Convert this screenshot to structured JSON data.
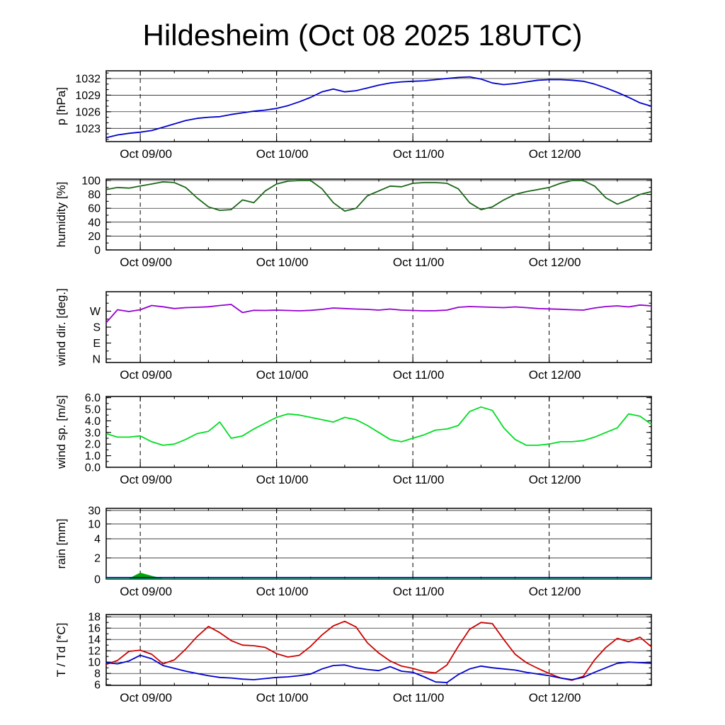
{
  "title": "Hildesheim (Oct 08 2025 18UTC)",
  "chart_data": {
    "type": "line",
    "x_axis": {
      "range_hours": [
        0,
        96
      ],
      "start_time": "Oct 08 18:00 UTC",
      "minor_step_hours": 6,
      "major_ticks": [
        {
          "hour": 6,
          "label": "Oct 09/00"
        },
        {
          "hour": 30,
          "label": "Oct 10/00"
        },
        {
          "hour": 54,
          "label": "Oct 11/00"
        },
        {
          "hour": 78,
          "label": "Oct 12/00"
        }
      ]
    },
    "sample_hours": [
      0,
      2,
      4,
      6,
      8,
      10,
      12,
      14,
      16,
      18,
      20,
      22,
      24,
      26,
      28,
      30,
      32,
      34,
      36,
      38,
      40,
      42,
      44,
      46,
      48,
      50,
      52,
      54,
      56,
      58,
      60,
      62,
      64,
      66,
      68,
      70,
      72,
      74,
      76,
      78,
      80,
      82,
      84,
      86,
      88,
      90,
      92,
      94,
      96
    ],
    "panels": [
      {
        "id": "pressure",
        "ylabel": "p [hPa]",
        "ylim": [
          1020.6,
          1033.4
        ],
        "minor_step": 1,
        "grid": true,
        "yticks": [
          {
            "v": 1023,
            "label": "1023"
          },
          {
            "v": 1026,
            "label": "1026"
          },
          {
            "v": 1029,
            "label": "1029"
          },
          {
            "v": 1032,
            "label": "1032"
          }
        ],
        "series": [
          {
            "name": "pressure",
            "color": "#0000cd",
            "values": [
              1021.3,
              1021.8,
              1022.1,
              1022.3,
              1022.6,
              1023.2,
              1023.8,
              1024.4,
              1024.8,
              1025.0,
              1025.1,
              1025.5,
              1025.8,
              1026.1,
              1026.3,
              1026.6,
              1027.1,
              1027.8,
              1028.6,
              1029.6,
              1030.1,
              1029.6,
              1029.8,
              1030.3,
              1030.8,
              1031.2,
              1031.4,
              1031.5,
              1031.6,
              1031.8,
              1032.0,
              1032.2,
              1032.3,
              1031.9,
              1031.2,
              1030.9,
              1031.1,
              1031.4,
              1031.7,
              1031.8,
              1031.8,
              1031.7,
              1031.5,
              1031.0,
              1030.3,
              1029.5,
              1028.6,
              1027.6,
              1027.0
            ]
          }
        ]
      },
      {
        "id": "humidity",
        "ylabel": "humidity [%]",
        "ylim": [
          0,
          102
        ],
        "minor_step": 10,
        "grid": true,
        "yticks": [
          {
            "v": 0,
            "label": "0"
          },
          {
            "v": 20,
            "label": "20"
          },
          {
            "v": 40,
            "label": "40"
          },
          {
            "v": 60,
            "label": "60"
          },
          {
            "v": 80,
            "label": "80"
          },
          {
            "v": 100,
            "label": "100"
          }
        ],
        "series": [
          {
            "name": "humidity",
            "color": "#1a6618",
            "values": [
              87,
              90,
              89,
              92,
              95,
              98,
              97,
              90,
              75,
              62,
              57,
              58,
              72,
              68,
              85,
              95,
              99,
              100,
              100,
              88,
              68,
              56,
              60,
              78,
              85,
              92,
              91,
              96,
              97,
              97,
              96,
              88,
              68,
              58,
              62,
              72,
              80,
              84,
              87,
              90,
              96,
              100,
              100,
              92,
              75,
              66,
              72,
              80,
              84
            ]
          }
        ]
      },
      {
        "id": "wind-direction",
        "ylabel": "wind dir. [deg.]",
        "ylim": [
          -20,
          380
        ],
        "minor_step": 45,
        "grid": false,
        "yticks": [
          {
            "v": 0,
            "label": "N"
          },
          {
            "v": 90,
            "label": "E"
          },
          {
            "v": 180,
            "label": "S"
          },
          {
            "v": 270,
            "label": "W"
          }
        ],
        "series": [
          {
            "name": "wind-direction",
            "color": "#9400d3",
            "values": [
              205,
              278,
              268,
              278,
              302,
              295,
              285,
              290,
              292,
              295,
              302,
              308,
              262,
              275,
              274,
              276,
              274,
              272,
              275,
              280,
              288,
              285,
              282,
              280,
              276,
              282,
              276,
              274,
              272,
              273,
              276,
              292,
              296,
              294,
              292,
              290,
              294,
              290,
              285,
              283,
              281,
              278,
              276,
              288,
              296,
              300,
              294,
              305,
              300
            ]
          }
        ]
      },
      {
        "id": "wind-speed",
        "ylabel": "wind sp. [m/s]",
        "ylim": [
          0,
          6.1
        ],
        "minor_step": 0.5,
        "grid": false,
        "yticks": [
          {
            "v": 0,
            "label": "0.0"
          },
          {
            "v": 1,
            "label": "1.0"
          },
          {
            "v": 2,
            "label": "2.0"
          },
          {
            "v": 3,
            "label": "3.0"
          },
          {
            "v": 4,
            "label": "4.0"
          },
          {
            "v": 5,
            "label": "5.0"
          },
          {
            "v": 6,
            "label": "6.0"
          }
        ],
        "series": [
          {
            "name": "wind-speed",
            "color": "#00dd22",
            "values": [
              2.9,
              2.6,
              2.6,
              2.7,
              2.2,
              1.9,
              2.0,
              2.4,
              2.9,
              3.1,
              3.9,
              2.5,
              2.7,
              3.3,
              3.8,
              4.3,
              4.6,
              4.5,
              4.3,
              4.1,
              3.9,
              4.3,
              4.1,
              3.6,
              3.0,
              2.4,
              2.2,
              2.5,
              2.8,
              3.2,
              3.3,
              3.6,
              4.8,
              5.2,
              4.9,
              3.4,
              2.4,
              1.9,
              1.9,
              2.0,
              2.2,
              2.2,
              2.3,
              2.6,
              3.0,
              3.4,
              4.6,
              4.4,
              3.7
            ]
          }
        ]
      },
      {
        "id": "rain",
        "ylabel": "rain [mm]",
        "scale": "piecewise",
        "grid": true,
        "yticks": [
          {
            "v": 0,
            "label": "0",
            "f": 0
          },
          {
            "v": 2,
            "label": "2",
            "f": 0.3
          },
          {
            "v": 4,
            "label": "4",
            "f": 0.57
          },
          {
            "v": 10,
            "label": "10",
            "f": 0.78
          },
          {
            "v": 30,
            "label": "30",
            "f": 0.97
          }
        ],
        "series": [
          {
            "name": "rain-bar",
            "color": "#00aa00",
            "fill": true,
            "values": [
              0,
              0,
              0,
              0.55,
              0.25,
              0,
              0,
              0,
              0,
              0,
              0,
              0,
              0,
              0,
              0,
              0,
              0,
              0,
              0,
              0,
              0,
              0,
              0,
              0,
              0,
              0,
              0,
              0,
              0,
              0,
              0,
              0,
              0,
              0,
              0,
              0,
              0,
              0,
              0,
              0,
              0,
              0,
              0,
              0,
              0,
              0,
              0,
              0,
              0
            ]
          },
          {
            "name": "rain-line",
            "color": "#0000cd",
            "values": [
              0.15,
              0.15,
              0.15,
              0.15,
              0.15,
              0.15,
              0.15,
              0.15,
              0.15,
              0.15,
              0.15,
              0.15,
              0.15,
              0.15,
              0.15,
              0.15,
              0.15,
              0.15,
              0.15,
              0.15,
              0.15,
              0.15,
              0.15,
              0.15,
              0.15,
              0.15,
              0.15,
              0.15,
              0.15,
              0.15,
              0.15,
              0.15,
              0.15,
              0.15,
              0.15,
              0.15,
              0.15,
              0.15,
              0.15,
              0.15,
              0.15,
              0.15,
              0.15,
              0.15,
              0.15,
              0.15,
              0.15,
              0.15,
              0.15
            ]
          }
        ]
      },
      {
        "id": "temperature",
        "ylabel": "T / Td [*C]",
        "ylim": [
          5.9,
          18.4
        ],
        "minor_step": 1,
        "grid": true,
        "yticks": [
          {
            "v": 6,
            "label": "6"
          },
          {
            "v": 8,
            "label": "8"
          },
          {
            "v": 10,
            "label": "10"
          },
          {
            "v": 12,
            "label": "12"
          },
          {
            "v": 14,
            "label": "14"
          },
          {
            "v": 16,
            "label": "16"
          },
          {
            "v": 18,
            "label": "18"
          }
        ],
        "series": [
          {
            "name": "temperature",
            "color": "#cc0000",
            "values": [
              9.6,
              10.3,
              11.9,
              12.1,
              11.4,
              9.7,
              10.4,
              12.3,
              14.5,
              16.3,
              15.2,
              13.8,
              13.0,
              12.9,
              12.6,
              11.5,
              10.9,
              11.2,
              12.8,
              14.8,
              16.4,
              17.2,
              16.2,
              13.4,
              11.6,
              10.2,
              9.3,
              8.9,
              8.3,
              8.1,
              9.5,
              12.8,
              15.8,
              17.0,
              16.8,
              14.0,
              11.4,
              9.9,
              8.9,
              8.0,
              7.2,
              6.8,
              7.5,
              10.4,
              12.6,
              14.2,
              13.6,
              14.4,
              12.7
            ]
          },
          {
            "name": "dew-point",
            "color": "#0000cd",
            "values": [
              9.9,
              9.7,
              10.2,
              11.2,
              10.6,
              9.4,
              8.9,
              8.4,
              8.0,
              7.6,
              7.3,
              7.2,
              7.0,
              6.9,
              7.1,
              7.3,
              7.4,
              7.6,
              7.9,
              8.8,
              9.4,
              9.5,
              9.0,
              8.7,
              8.5,
              9.2,
              8.4,
              8.2,
              7.4,
              6.5,
              6.4,
              7.8,
              8.8,
              9.3,
              9.0,
              8.8,
              8.6,
              8.2,
              7.9,
              7.6,
              7.2,
              6.9,
              7.3,
              8.2,
              9.0,
              9.8,
              10.0,
              9.9,
              9.8
            ]
          }
        ]
      }
    ]
  }
}
